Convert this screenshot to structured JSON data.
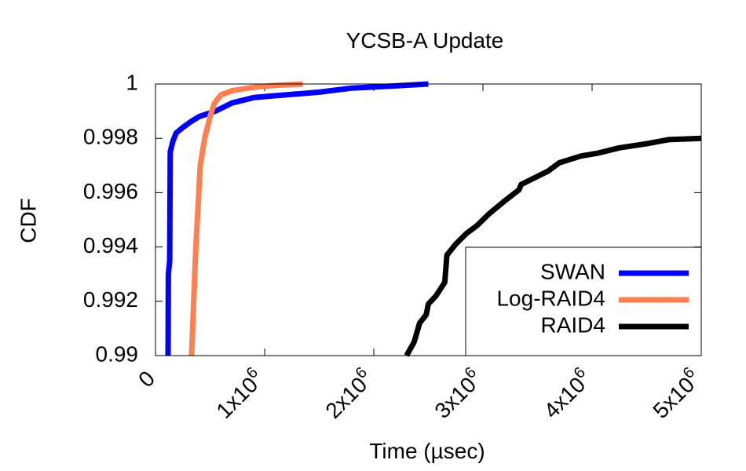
{
  "chart_data": {
    "type": "line",
    "title": "YCSB-A Update",
    "xlabel": "Time (µsec)",
    "ylabel": "CDF",
    "xlim": [
      0,
      5000000
    ],
    "ylim": [
      0.99,
      1.0
    ],
    "x_ticks": [
      {
        "value": 0,
        "label": "0"
      },
      {
        "value": 1000000,
        "label": "1x10",
        "exp": "6"
      },
      {
        "value": 2000000,
        "label": "2x10",
        "exp": "6"
      },
      {
        "value": 3000000,
        "label": "3x10",
        "exp": "6"
      },
      {
        "value": 4000000,
        "label": "4x10",
        "exp": "6"
      },
      {
        "value": 5000000,
        "label": "5x10",
        "exp": "6"
      }
    ],
    "y_ticks": [
      {
        "value": 0.99,
        "label": "0.99"
      },
      {
        "value": 0.992,
        "label": "0.992"
      },
      {
        "value": 0.994,
        "label": "0.994"
      },
      {
        "value": 0.996,
        "label": "0.996"
      },
      {
        "value": 0.998,
        "label": "0.998"
      },
      {
        "value": 1.0,
        "label": "1"
      }
    ],
    "grid": false,
    "legend_position": "bottom-right",
    "series": [
      {
        "name": "SWAN",
        "color": "#0000ff",
        "points": [
          [
            115000,
            0.99
          ],
          [
            118000,
            0.993
          ],
          [
            130000,
            0.9935
          ],
          [
            135000,
            0.9975
          ],
          [
            160000,
            0.9979
          ],
          [
            190000,
            0.9982
          ],
          [
            250000,
            0.9984
          ],
          [
            320000,
            0.9986
          ],
          [
            400000,
            0.9988
          ],
          [
            550000,
            0.999
          ],
          [
            700000,
            0.9993
          ],
          [
            900000,
            0.9995
          ],
          [
            1200000,
            0.9996
          ],
          [
            1500000,
            0.9997
          ],
          [
            1800000,
            0.99985
          ],
          [
            2200000,
            0.99993
          ],
          [
            2500000,
            1.0
          ]
        ]
      },
      {
        "name": "Log-RAID4",
        "color": "#ff7f50",
        "points": [
          [
            330000,
            0.99
          ],
          [
            370000,
            0.994
          ],
          [
            410000,
            0.997
          ],
          [
            450000,
            0.998
          ],
          [
            500000,
            0.9988
          ],
          [
            540000,
            0.9993
          ],
          [
            600000,
            0.9996
          ],
          [
            700000,
            0.99975
          ],
          [
            900000,
            0.99988
          ],
          [
            1100000,
            0.99995
          ],
          [
            1350000,
            1.0
          ]
        ]
      },
      {
        "name": "RAID4",
        "color": "#000000",
        "points": [
          [
            2300000,
            0.99
          ],
          [
            2370000,
            0.9905
          ],
          [
            2420000,
            0.9912
          ],
          [
            2480000,
            0.9915
          ],
          [
            2500000,
            0.9919
          ],
          [
            2570000,
            0.9922
          ],
          [
            2650000,
            0.9927
          ],
          [
            2670000,
            0.9937
          ],
          [
            2750000,
            0.9941
          ],
          [
            2850000,
            0.9945
          ],
          [
            2950000,
            0.9948
          ],
          [
            3050000,
            0.9952
          ],
          [
            3200000,
            0.9957
          ],
          [
            3330000,
            0.9961
          ],
          [
            3350000,
            0.9963
          ],
          [
            3450000,
            0.9965
          ],
          [
            3600000,
            0.9968
          ],
          [
            3700000,
            0.9971
          ],
          [
            3900000,
            0.99735
          ],
          [
            4050000,
            0.99745
          ],
          [
            4250000,
            0.99765
          ],
          [
            4500000,
            0.9978
          ],
          [
            4700000,
            0.99795
          ],
          [
            5000000,
            0.998
          ]
        ]
      }
    ]
  }
}
